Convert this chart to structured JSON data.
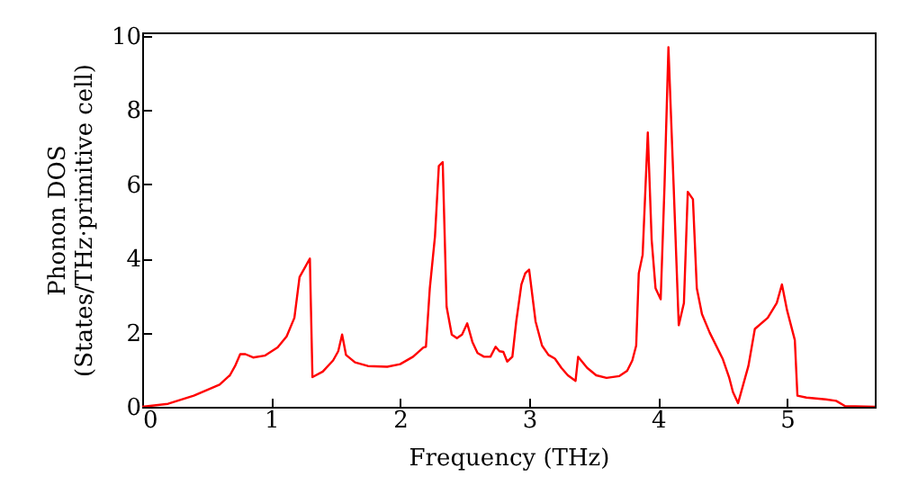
{
  "chart_data": {
    "type": "line",
    "xlabel": "Frequency (THz)",
    "ylabel": "Phonon DOS\n(States/THz·primitive cell)",
    "xlim": [
      0,
      5.68
    ],
    "ylim": [
      0,
      10.1
    ],
    "xticks": [
      0,
      1,
      2,
      3,
      4,
      5
    ],
    "yticks": [
      0,
      2,
      4,
      6,
      8,
      10
    ],
    "grid": false,
    "line_style": "solid",
    "x": [
      0,
      0.2,
      0.4,
      0.6,
      0.68,
      0.72,
      0.76,
      0.8,
      0.86,
      0.95,
      1.05,
      1.12,
      1.18,
      1.22,
      1.26,
      1.3,
      1.32,
      1.4,
      1.48,
      1.52,
      1.55,
      1.58,
      1.65,
      1.75,
      1.9,
      2.0,
      2.1,
      2.18,
      2.2,
      2.23,
      2.27,
      2.3,
      2.33,
      2.36,
      2.4,
      2.44,
      2.48,
      2.52,
      2.56,
      2.6,
      2.65,
      2.7,
      2.74,
      2.77,
      2.8,
      2.83,
      2.87,
      2.9,
      2.94,
      2.97,
      3.0,
      3.05,
      3.1,
      3.15,
      3.2,
      3.25,
      3.3,
      3.36,
      3.38,
      3.45,
      3.52,
      3.6,
      3.7,
      3.76,
      3.8,
      3.83,
      3.85,
      3.88,
      3.92,
      3.95,
      3.98,
      4.02,
      4.05,
      4.08,
      4.12,
      4.16,
      4.2,
      4.23,
      4.27,
      4.3,
      4.34,
      4.4,
      4.5,
      4.55,
      4.58,
      4.62,
      4.7,
      4.75,
      4.85,
      4.92,
      4.96,
      5.0,
      5.06,
      5.08,
      5.15,
      5.3,
      5.38,
      5.45,
      5.68
    ],
    "series": [
      {
        "color": "#ff0000",
        "values": [
          0,
          0.08,
          0.3,
          0.6,
          0.85,
          1.1,
          1.42,
          1.42,
          1.33,
          1.38,
          1.6,
          1.9,
          2.4,
          3.5,
          3.75,
          4.0,
          0.8,
          0.95,
          1.25,
          1.5,
          1.95,
          1.4,
          1.2,
          1.1,
          1.08,
          1.15,
          1.35,
          1.6,
          1.62,
          3.2,
          4.6,
          6.5,
          6.6,
          2.7,
          1.95,
          1.85,
          1.95,
          2.25,
          1.75,
          1.45,
          1.35,
          1.35,
          1.62,
          1.5,
          1.48,
          1.22,
          1.35,
          2.3,
          3.3,
          3.6,
          3.7,
          2.3,
          1.65,
          1.4,
          1.3,
          1.05,
          0.85,
          0.7,
          1.35,
          1.05,
          0.85,
          0.78,
          0.83,
          0.97,
          1.25,
          1.65,
          3.6,
          4.1,
          7.4,
          4.5,
          3.2,
          2.9,
          6.0,
          9.7,
          6.0,
          2.2,
          2.8,
          5.8,
          5.6,
          3.2,
          2.5,
          2.0,
          1.3,
          0.8,
          0.4,
          0.1,
          1.1,
          2.1,
          2.4,
          2.8,
          3.3,
          2.6,
          1.8,
          0.3,
          0.25,
          0.2,
          0.16,
          0.02,
          0
        ]
      }
    ]
  }
}
